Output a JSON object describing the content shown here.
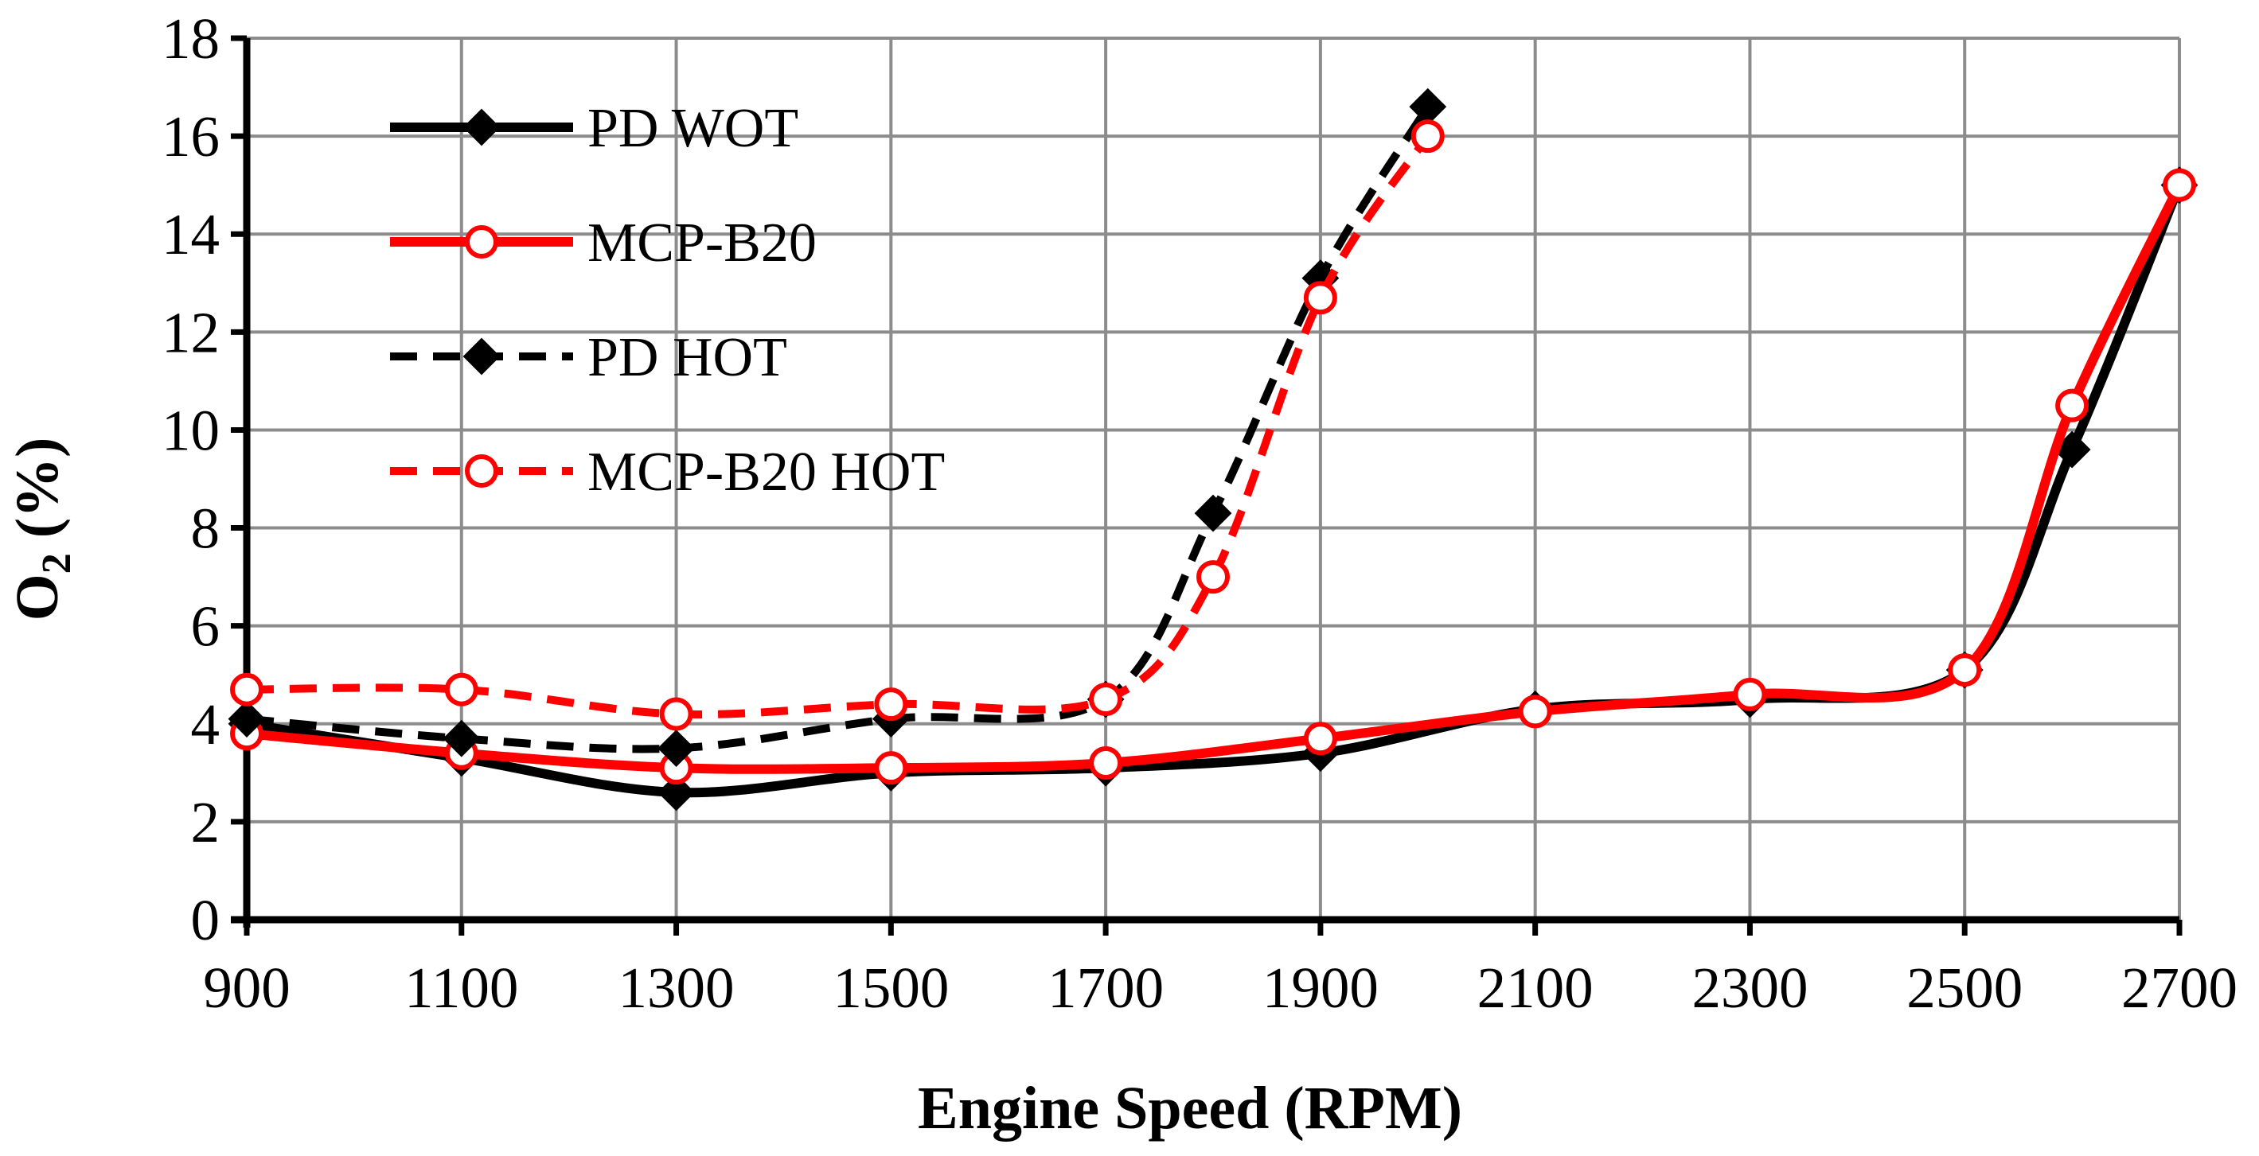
{
  "chart_data": {
    "type": "line",
    "title": "",
    "xlabel": "Engine Speed (RPM)",
    "ylabel_main": "O",
    "ylabel_sub": "2",
    "ylabel_suffix": " (%)",
    "xlim": [
      900,
      2700
    ],
    "ylim": [
      0,
      18
    ],
    "x_ticks": [
      900,
      1100,
      1300,
      1500,
      1700,
      1900,
      2100,
      2300,
      2500,
      2700
    ],
    "y_ticks": [
      0,
      2,
      4,
      6,
      8,
      10,
      12,
      14,
      16,
      18
    ],
    "grid": true,
    "legend_position": "top-left",
    "series": [
      {
        "name": "PD WOT",
        "color": "#000000",
        "line_style": "solid",
        "marker": "diamond",
        "x": [
          900,
          1100,
          1300,
          1500,
          1700,
          1900,
          2100,
          2300,
          2500,
          2600,
          2700
        ],
        "y": [
          4.0,
          3.3,
          2.6,
          3.0,
          3.1,
          3.4,
          4.3,
          4.5,
          5.1,
          9.6,
          15.0
        ]
      },
      {
        "name": "MCP-B20",
        "color": "#ff0000",
        "line_style": "solid",
        "marker": "open-circle",
        "x": [
          900,
          1100,
          1300,
          1500,
          1700,
          1900,
          2100,
          2300,
          2500,
          2600,
          2700
        ],
        "y": [
          3.8,
          3.4,
          3.1,
          3.1,
          3.2,
          3.7,
          4.25,
          4.6,
          5.1,
          10.5,
          15.0
        ]
      },
      {
        "name": "PD HOT",
        "color": "#000000",
        "line_style": "dashed",
        "marker": "diamond",
        "x": [
          900,
          1100,
          1300,
          1500,
          1700,
          1800,
          1900,
          2000
        ],
        "y": [
          4.1,
          3.7,
          3.5,
          4.1,
          4.5,
          8.3,
          13.1,
          16.6
        ]
      },
      {
        "name": "MCP-B20 HOT",
        "color": "#ff0000",
        "line_style": "dashed",
        "marker": "open-circle",
        "x": [
          900,
          1100,
          1300,
          1500,
          1700,
          1800,
          1900,
          2000
        ],
        "y": [
          4.7,
          4.7,
          4.2,
          4.4,
          4.5,
          7.0,
          12.7,
          16.0
        ]
      }
    ]
  }
}
